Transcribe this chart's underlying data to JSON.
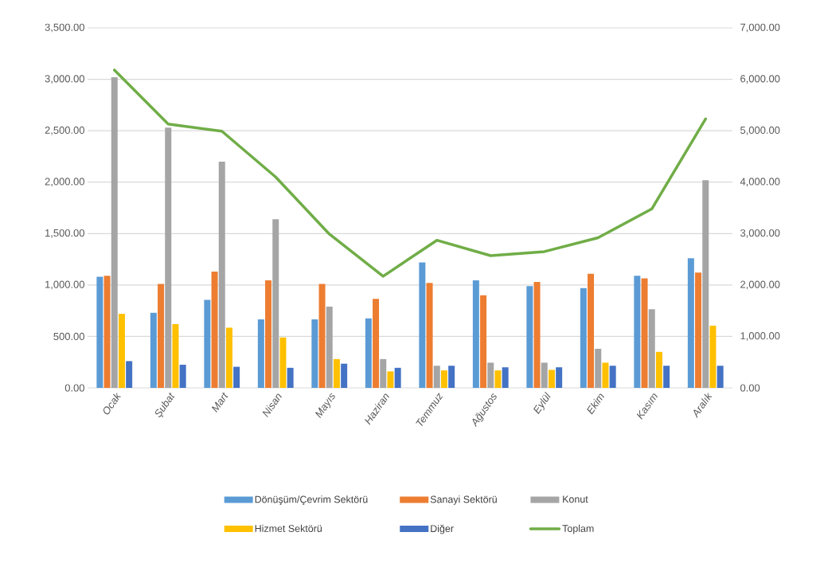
{
  "chart_data": {
    "type": "bar",
    "categories": [
      "Ocak",
      "Şubat",
      "Mart",
      "Nisan",
      "Mayıs",
      "Haziran",
      "Temmuz",
      "Ağustos",
      "Eylül",
      "Ekim",
      "Kasım",
      "Aralık"
    ],
    "series": [
      {
        "name": "Dönüşüm/Çevrim Sektörü",
        "color": "#5b9bd5",
        "values": [
          1080,
          730,
          855,
          665,
          665,
          675,
          1220,
          1045,
          990,
          970,
          1090,
          1260
        ]
      },
      {
        "name": "Sanayi Sektörü",
        "color": "#ed7d31",
        "values": [
          1090,
          1010,
          1130,
          1045,
          1010,
          865,
          1020,
          900,
          1030,
          1110,
          1065,
          1120
        ]
      },
      {
        "name": "Konut",
        "color": "#a5a5a5",
        "values": [
          3020,
          2530,
          2200,
          1640,
          790,
          280,
          215,
          245,
          245,
          380,
          765,
          2020
        ]
      },
      {
        "name": "Hizmet Sektörü",
        "color": "#ffc000",
        "values": [
          720,
          620,
          585,
          490,
          280,
          160,
          170,
          170,
          175,
          245,
          350,
          605
        ]
      },
      {
        "name": "Diğer",
        "color": "#4472c4",
        "values": [
          260,
          225,
          205,
          195,
          235,
          195,
          215,
          200,
          200,
          215,
          215,
          215
        ]
      },
      {
        "name": "Toplam",
        "color": "#70ad47",
        "type": "line",
        "axis": "y2",
        "values": [
          6180,
          5130,
          4990,
          4100,
          2990,
          2170,
          2870,
          2570,
          2650,
          2920,
          3480,
          5230
        ]
      }
    ],
    "ylim": [
      0,
      3500
    ],
    "yticks": [
      {
        "value": 0,
        "label": "0.00"
      },
      {
        "value": 500,
        "label": "500.00"
      },
      {
        "value": 1000,
        "label": "1,000.00"
      },
      {
        "value": 1500,
        "label": "1,500.00"
      },
      {
        "value": 2000,
        "label": "2,000.00"
      },
      {
        "value": 2500,
        "label": "2,500.00"
      },
      {
        "value": 3000,
        "label": "3,000.00"
      },
      {
        "value": 3500,
        "label": "3,500.00"
      }
    ],
    "y2lim": [
      0,
      7000
    ],
    "y2ticks": [
      {
        "value": 0,
        "label": "0.00"
      },
      {
        "value": 1000,
        "label": "1,000.00"
      },
      {
        "value": 2000,
        "label": "2,000.00"
      },
      {
        "value": 3000,
        "label": "3,000.00"
      },
      {
        "value": 4000,
        "label": "4,000.00"
      },
      {
        "value": 5000,
        "label": "5,000.00"
      },
      {
        "value": 6000,
        "label": "6,000.00"
      },
      {
        "value": 7000,
        "label": "7,000.00"
      }
    ],
    "grid": "y",
    "legend": "bottom"
  }
}
